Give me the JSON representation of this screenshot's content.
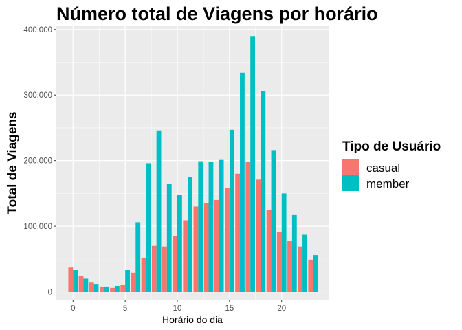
{
  "chart_data": {
    "type": "bar",
    "title": "Número total de Viagens por horário",
    "xlabel": "Horário do dia",
    "ylabel": "Total de Viagens",
    "x": [
      0,
      1,
      2,
      3,
      4,
      5,
      6,
      7,
      8,
      9,
      10,
      11,
      12,
      13,
      14,
      15,
      16,
      17,
      18,
      19,
      20,
      21,
      22,
      23
    ],
    "xlim": [
      -1.6,
      24.5
    ],
    "ylim": [
      -12000,
      405000
    ],
    "x_ticks": [
      0,
      5,
      10,
      15,
      20
    ],
    "y_ticks": [
      0,
      100000,
      200000,
      300000,
      400000
    ],
    "y_tick_labels": [
      "0",
      "100.000",
      "200.000",
      "300.000",
      "400.000"
    ],
    "x_tick_labels": [
      "0",
      "5",
      "10",
      "15",
      "20"
    ],
    "grid": true,
    "legend": {
      "title": "Tipo de Usuário",
      "position": "right"
    },
    "series": [
      {
        "name": "casual",
        "color": "#f8766d",
        "values": [
          37000,
          24000,
          15000,
          8000,
          6000,
          11000,
          29000,
          52000,
          70000,
          69000,
          85000,
          109000,
          130000,
          135000,
          140000,
          158000,
          180000,
          198000,
          171000,
          125000,
          91000,
          77000,
          69000,
          49000
        ]
      },
      {
        "name": "member",
        "color": "#00bfc4",
        "values": [
          34000,
          20000,
          12000,
          8000,
          9000,
          34000,
          106000,
          196000,
          246000,
          165000,
          148000,
          175000,
          199000,
          198000,
          201000,
          247000,
          334000,
          389000,
          306000,
          216000,
          150000,
          117000,
          87000,
          56000
        ]
      }
    ]
  }
}
